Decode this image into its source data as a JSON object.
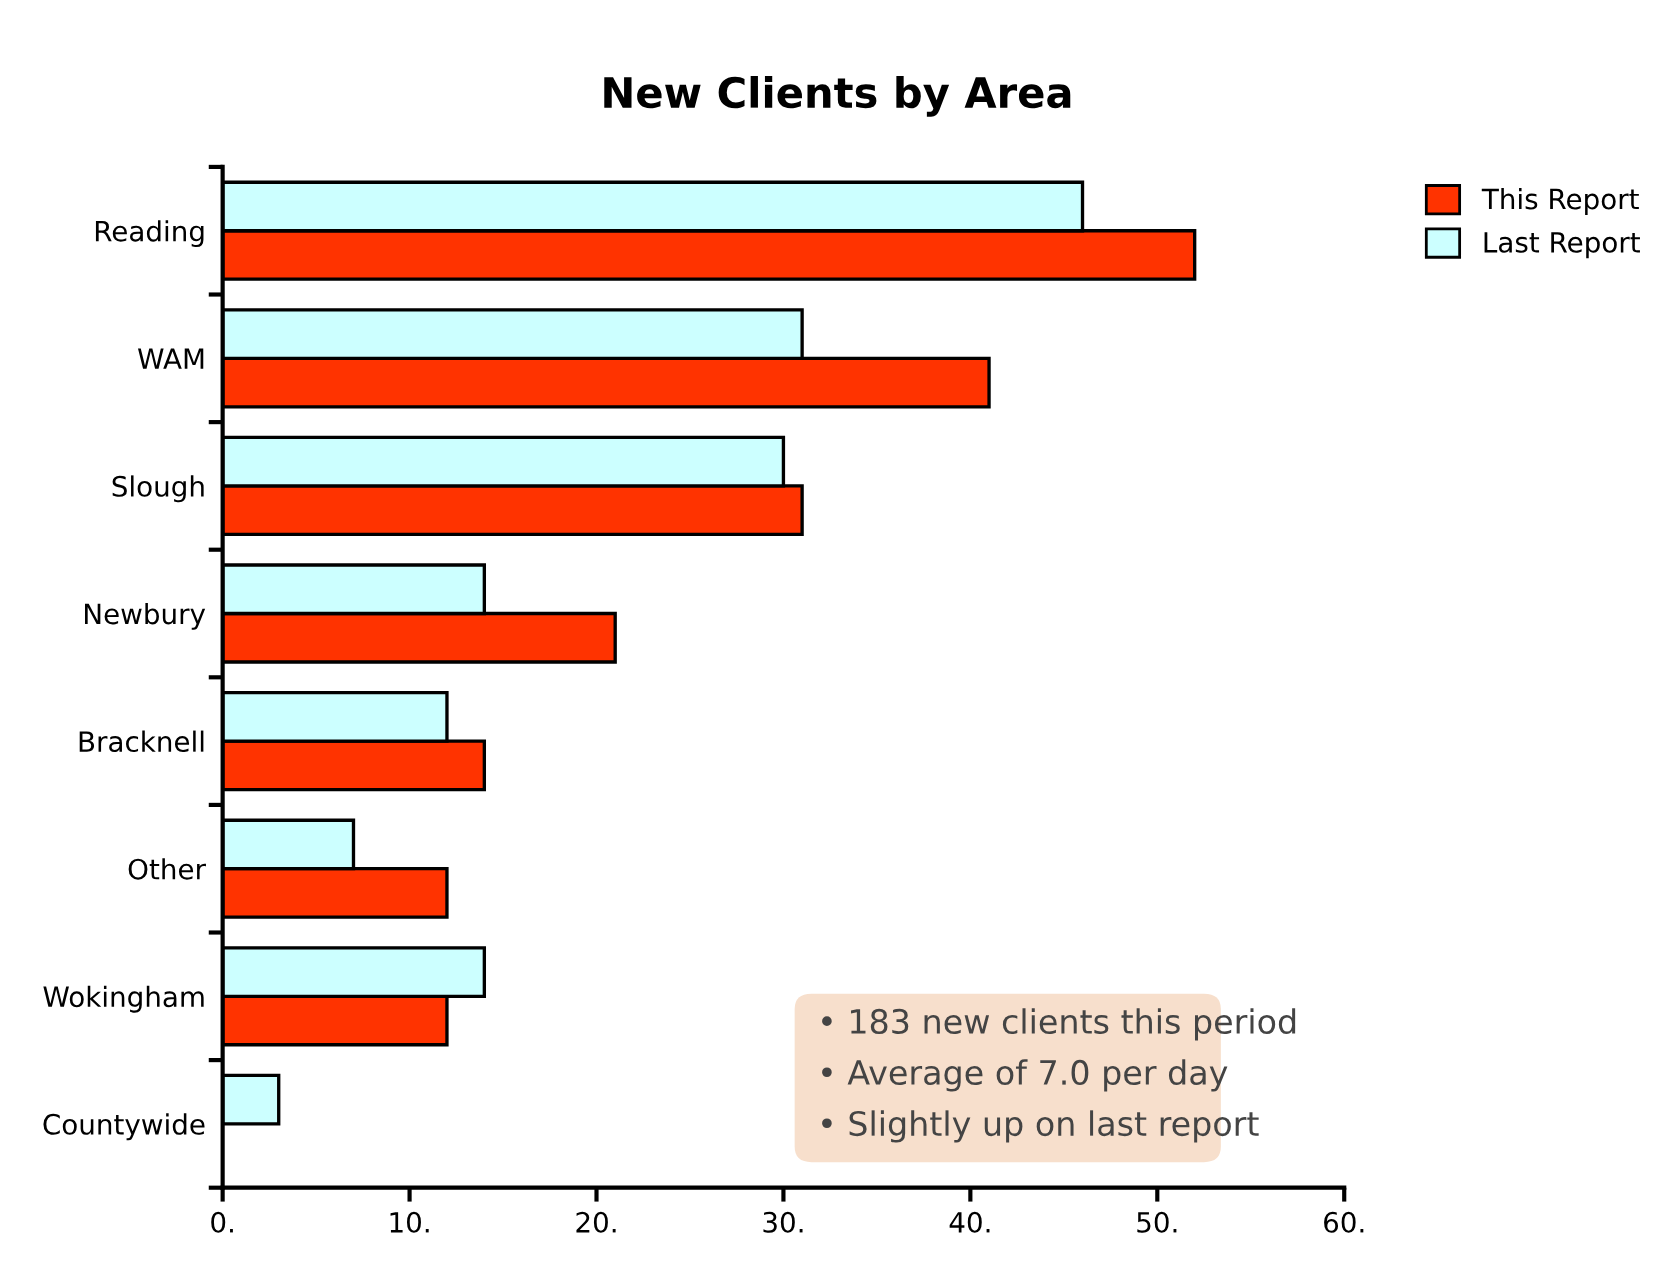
{
  "chart_data": {
    "type": "bar",
    "orientation": "horizontal",
    "title": "New Clients by Area",
    "categories": [
      "Reading",
      "WAM",
      "Slough",
      "Newbury",
      "Bracknell",
      "Other",
      "Wokingham",
      "Countywide"
    ],
    "series": [
      {
        "name": "This Report",
        "color": "#ff3300",
        "values": [
          52,
          41,
          31,
          21,
          14,
          12,
          12,
          null
        ]
      },
      {
        "name": "Last Report",
        "color": "#ccffff",
        "values": [
          46,
          31,
          30,
          14,
          12,
          7,
          14,
          3
        ]
      }
    ],
    "xlim": [
      0,
      60
    ],
    "xticks": [
      {
        "value": 0,
        "label": "0."
      },
      {
        "value": 10,
        "label": "10."
      },
      {
        "value": 20,
        "label": "20."
      },
      {
        "value": 30,
        "label": "30."
      },
      {
        "value": 40,
        "label": "40."
      },
      {
        "value": 50,
        "label": "50."
      },
      {
        "value": 60,
        "label": "60."
      }
    ],
    "grid": false,
    "legend": "top right",
    "annotations": [
      "• 183 new clients this period",
      "• Average of 7.0 per day",
      "• Slightly up on last report"
    ]
  }
}
